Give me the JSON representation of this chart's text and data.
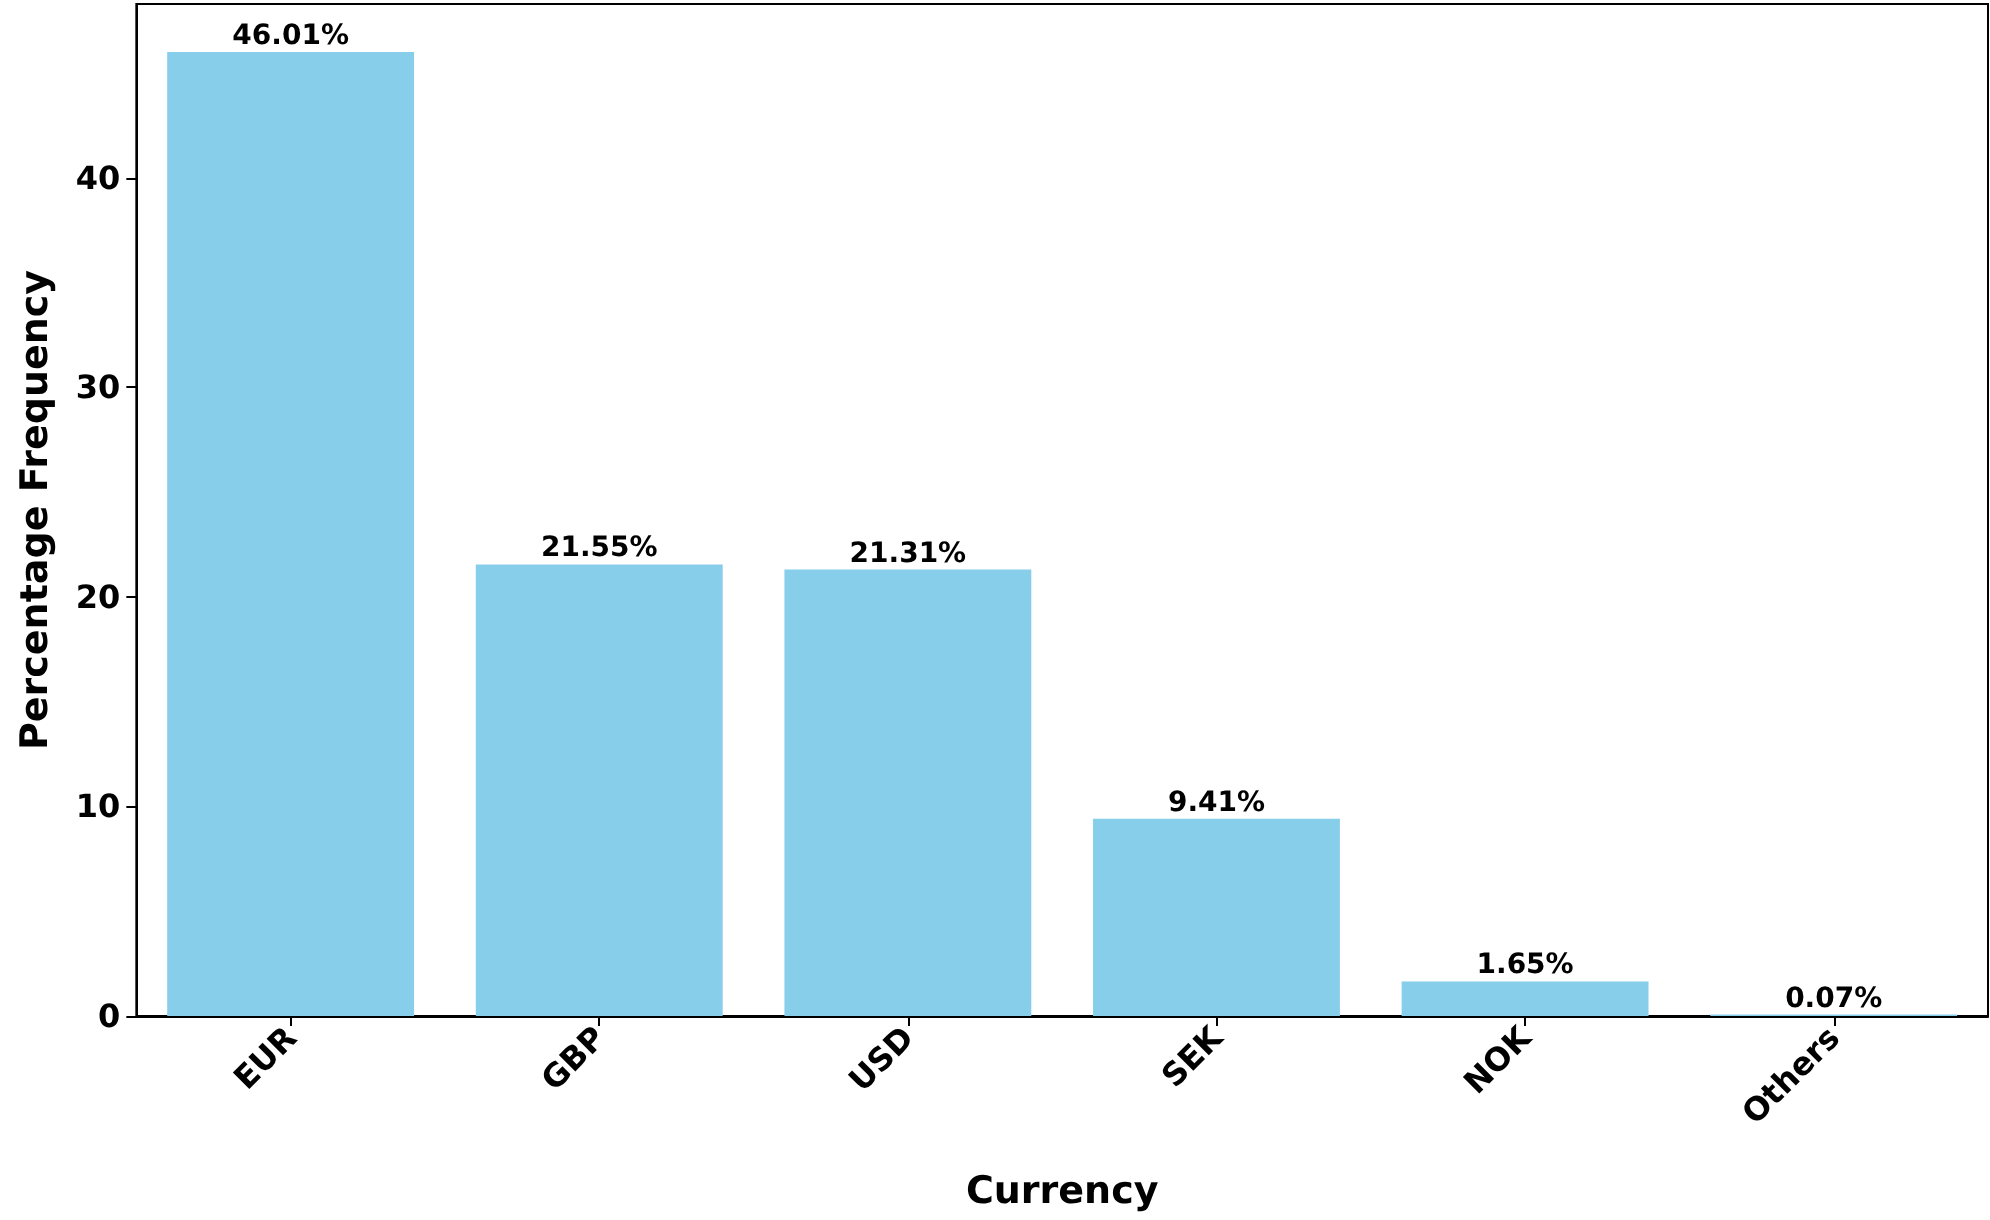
{
  "chart_data": {
    "type": "bar",
    "xlabel": "Currency",
    "ylabel": "Percentage Frequency",
    "categories": [
      "EUR",
      "GBP",
      "USD",
      "SEK",
      "NOK",
      "Others"
    ],
    "values": [
      46.01,
      21.55,
      21.31,
      9.41,
      1.65,
      0.07
    ],
    "value_labels": [
      "46.01%",
      "21.55%",
      "21.31%",
      "9.41%",
      "1.65%",
      "0.07%"
    ],
    "color": "#87ceeb",
    "ylim": [
      0,
      48.3
    ],
    "yticks": [
      0,
      10,
      20,
      30,
      40
    ],
    "grid": false
  }
}
